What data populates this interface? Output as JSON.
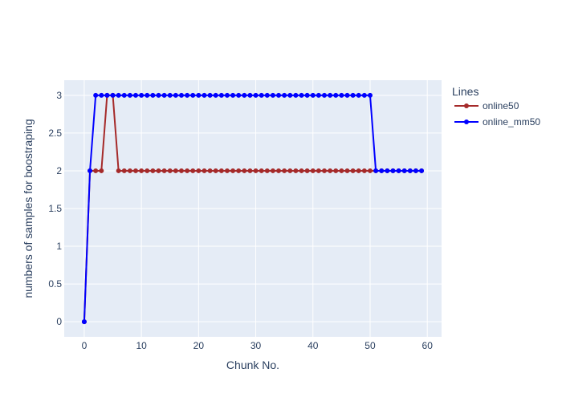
{
  "chart_data": {
    "type": "line",
    "xlabel": "Chunk No.",
    "ylabel": "numbers of samples for boostraping",
    "xlim": [
      -3.5,
      62.5
    ],
    "ylim": [
      -0.2,
      3.2
    ],
    "x_ticks": [
      0,
      10,
      20,
      30,
      40,
      50,
      60
    ],
    "y_ticks": [
      0,
      0.5,
      1,
      1.5,
      2,
      2.5,
      3
    ],
    "grid": true,
    "legend": {
      "title": "Lines",
      "position": "right"
    },
    "x": [
      0,
      1,
      2,
      3,
      4,
      5,
      6,
      7,
      8,
      9,
      10,
      11,
      12,
      13,
      14,
      15,
      16,
      17,
      18,
      19,
      20,
      21,
      22,
      23,
      24,
      25,
      26,
      27,
      28,
      29,
      30,
      31,
      32,
      33,
      34,
      35,
      36,
      37,
      38,
      39,
      40,
      41,
      42,
      43,
      44,
      45,
      46,
      47,
      48,
      49,
      50,
      51,
      52,
      53,
      54,
      55,
      56,
      57,
      58,
      59
    ],
    "series": [
      {
        "name": "online50",
        "color": "#a52a2a",
        "values": [
          0,
          2,
          2,
          2,
          3,
          3,
          2,
          2,
          2,
          2,
          2,
          2,
          2,
          2,
          2,
          2,
          2,
          2,
          2,
          2,
          2,
          2,
          2,
          2,
          2,
          2,
          2,
          2,
          2,
          2,
          2,
          2,
          2,
          2,
          2,
          2,
          2,
          2,
          2,
          2,
          2,
          2,
          2,
          2,
          2,
          2,
          2,
          2,
          2,
          2,
          2,
          2,
          2,
          2,
          2,
          2,
          2,
          2,
          2,
          2
        ]
      },
      {
        "name": "online_mm50",
        "color": "#0000ff",
        "values": [
          0,
          2,
          3,
          3,
          3,
          3,
          3,
          3,
          3,
          3,
          3,
          3,
          3,
          3,
          3,
          3,
          3,
          3,
          3,
          3,
          3,
          3,
          3,
          3,
          3,
          3,
          3,
          3,
          3,
          3,
          3,
          3,
          3,
          3,
          3,
          3,
          3,
          3,
          3,
          3,
          3,
          3,
          3,
          3,
          3,
          3,
          3,
          3,
          3,
          3,
          3,
          2,
          2,
          2,
          2,
          2,
          2,
          2,
          2,
          2
        ]
      }
    ]
  }
}
